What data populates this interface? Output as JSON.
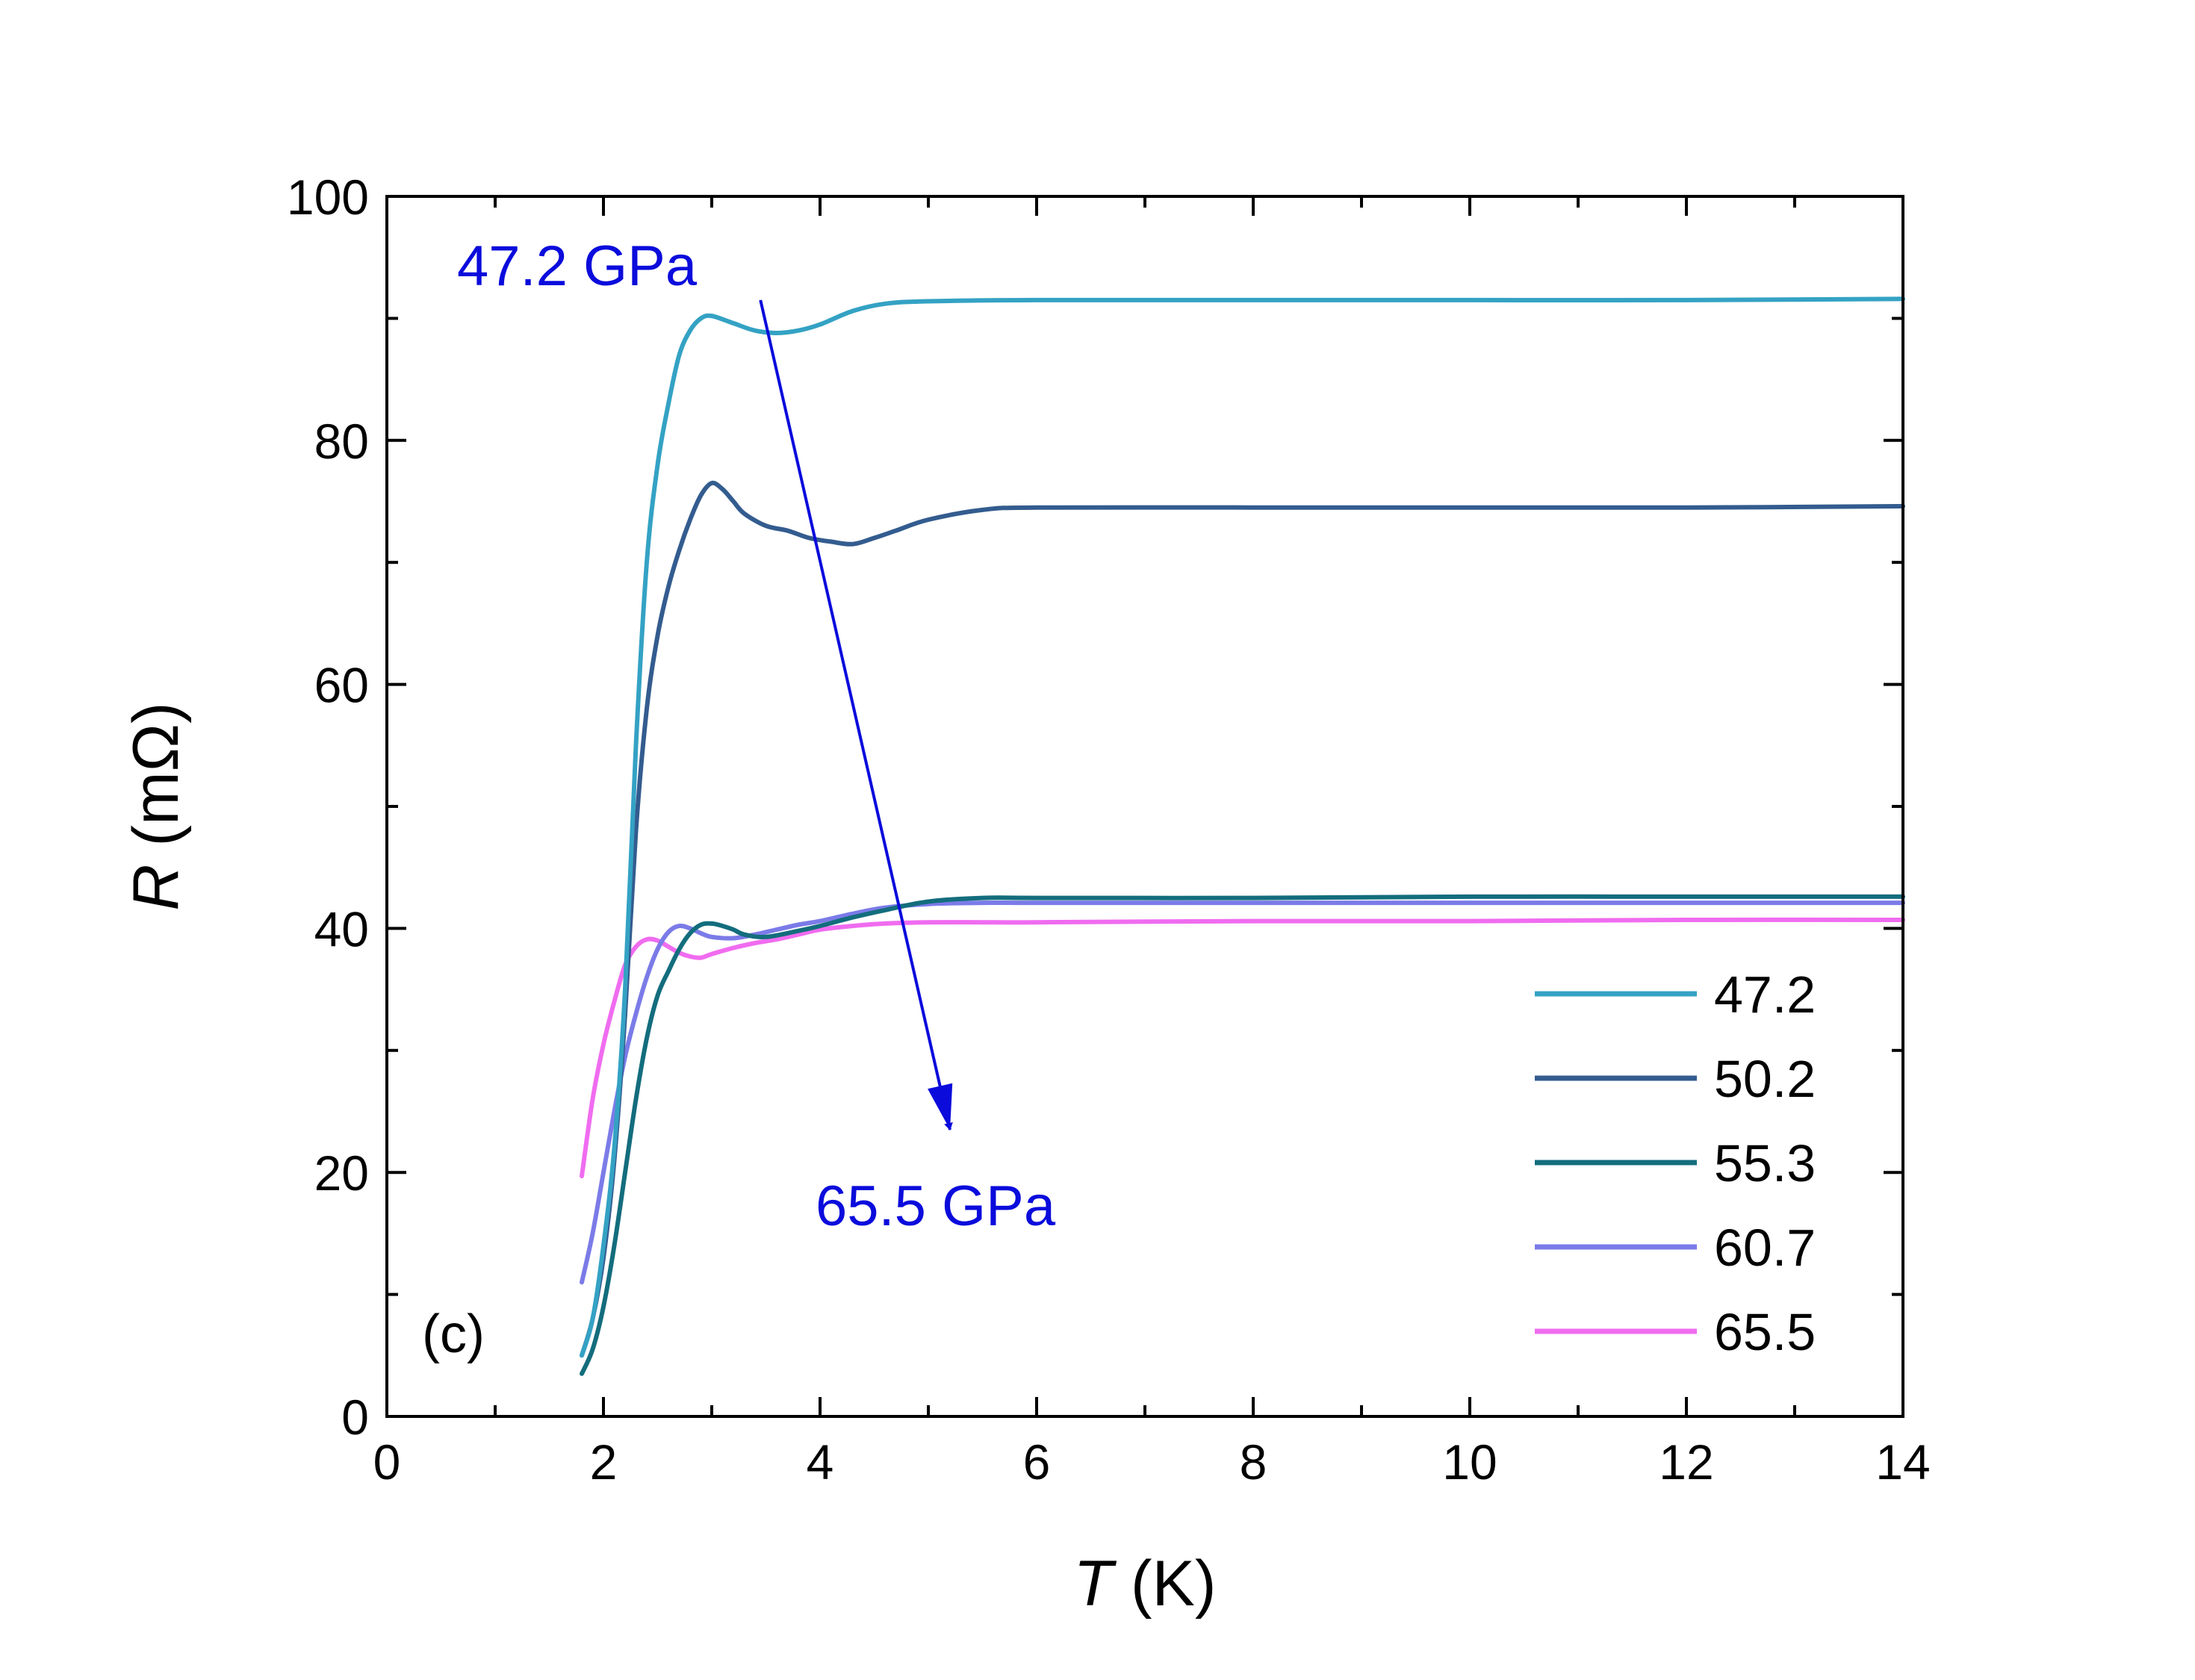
{
  "chart_data": {
    "type": "line",
    "title": "",
    "xlabel": {
      "symbol": "T",
      "unit": " (K)"
    },
    "ylabel": {
      "symbol": "R",
      "unit": " (mΩ)"
    },
    "xlim": [
      0,
      14
    ],
    "ylim": [
      0,
      100
    ],
    "xticks": [
      0,
      2,
      4,
      6,
      8,
      10,
      12,
      14
    ],
    "yticks": [
      0,
      20,
      40,
      60,
      80,
      100
    ],
    "grid": false,
    "legend_position": "bottom-right",
    "panel_label": "(c)",
    "annotations": {
      "start": "47.2 GPa",
      "end": "65.5 GPa",
      "color": "#0b0bdc",
      "arrow_from": {
        "x": 3.45,
        "y": 91.5
      },
      "arrow_to": {
        "x": 5.2,
        "y": 23.5
      }
    },
    "series": [
      {
        "name": "47.2",
        "color": "#34a2c4",
        "x": [
          1.8,
          1.9,
          2.0,
          2.1,
          2.2,
          2.3,
          2.4,
          2.5,
          2.6,
          2.7,
          2.8,
          2.9,
          3.0,
          3.2,
          3.4,
          3.6,
          3.8,
          4.0,
          4.3,
          4.6,
          5.0,
          6.0,
          8.0,
          10.0,
          12.0,
          14.0
        ],
        "y": [
          5,
          8,
          14,
          22,
          35,
          55,
          70,
          78,
          83,
          87,
          89,
          90,
          90.2,
          89.6,
          89,
          88.8,
          89,
          89.5,
          90.6,
          91.2,
          91.4,
          91.5,
          91.5,
          91.5,
          91.5,
          91.6
        ]
      },
      {
        "name": "50.2",
        "color": "#335c8f",
        "x": [
          1.8,
          1.9,
          2.0,
          2.1,
          2.2,
          2.3,
          2.4,
          2.5,
          2.6,
          2.7,
          2.8,
          2.9,
          3.0,
          3.1,
          3.2,
          3.3,
          3.5,
          3.7,
          3.9,
          4.1,
          4.3,
          4.5,
          4.7,
          5.0,
          5.5,
          6.0,
          8.0,
          10.0,
          12.0,
          14.0
        ],
        "y": [
          5,
          8,
          13,
          21,
          33,
          48,
          58,
          64,
          68,
          71,
          73.5,
          75.5,
          76.5,
          76,
          75,
          74,
          73,
          72.6,
          72,
          71.7,
          71.5,
          72,
          72.6,
          73.5,
          74.3,
          74.5,
          74.5,
          74.5,
          74.5,
          74.6
        ]
      },
      {
        "name": "55.3",
        "color": "#136d7d",
        "x": [
          1.8,
          1.9,
          2.0,
          2.1,
          2.2,
          2.3,
          2.4,
          2.5,
          2.6,
          2.7,
          2.8,
          2.9,
          3.0,
          3.1,
          3.2,
          3.3,
          3.5,
          3.8,
          4.0,
          4.3,
          4.6,
          5.0,
          5.5,
          6.0,
          8.0,
          10.0,
          12.0,
          14.0
        ],
        "y": [
          3.5,
          5.5,
          9,
          14,
          20,
          26,
          31,
          34.5,
          36.5,
          38.3,
          39.6,
          40.3,
          40.4,
          40.2,
          39.9,
          39.5,
          39.3,
          39.8,
          40.2,
          40.9,
          41.5,
          42.2,
          42.5,
          42.5,
          42.5,
          42.6,
          42.6,
          42.6
        ]
      },
      {
        "name": "60.7",
        "color": "#7b7be8",
        "x": [
          1.8,
          1.9,
          2.0,
          2.1,
          2.2,
          2.3,
          2.4,
          2.5,
          2.6,
          2.7,
          2.8,
          2.9,
          3.0,
          3.2,
          3.4,
          3.6,
          3.8,
          4.0,
          4.3,
          4.6,
          5.0,
          5.5,
          6.0,
          8.0,
          10.0,
          12.0,
          14.0
        ],
        "y": [
          11,
          15,
          20,
          25,
          29.5,
          33,
          36,
          38.3,
          39.7,
          40.2,
          40,
          39.6,
          39.3,
          39.2,
          39.5,
          39.9,
          40.3,
          40.6,
          41.2,
          41.7,
          42,
          42.1,
          42.1,
          42.1,
          42.1,
          42.1,
          42.1
        ]
      },
      {
        "name": "65.5",
        "color": "#f06cf0",
        "x": [
          1.8,
          1.9,
          2.0,
          2.1,
          2.2,
          2.3,
          2.4,
          2.5,
          2.6,
          2.7,
          2.8,
          2.9,
          3.0,
          3.2,
          3.4,
          3.6,
          3.8,
          4.0,
          4.3,
          4.6,
          5.0,
          5.5,
          6.0,
          8.0,
          10.0,
          12.0,
          14.0
        ],
        "y": [
          19.7,
          26,
          30.5,
          34,
          37,
          38.5,
          39.1,
          39,
          38.5,
          38,
          37.7,
          37.6,
          37.9,
          38.4,
          38.8,
          39.1,
          39.5,
          39.9,
          40.2,
          40.4,
          40.5,
          40.5,
          40.5,
          40.6,
          40.6,
          40.7,
          40.7
        ]
      }
    ]
  }
}
